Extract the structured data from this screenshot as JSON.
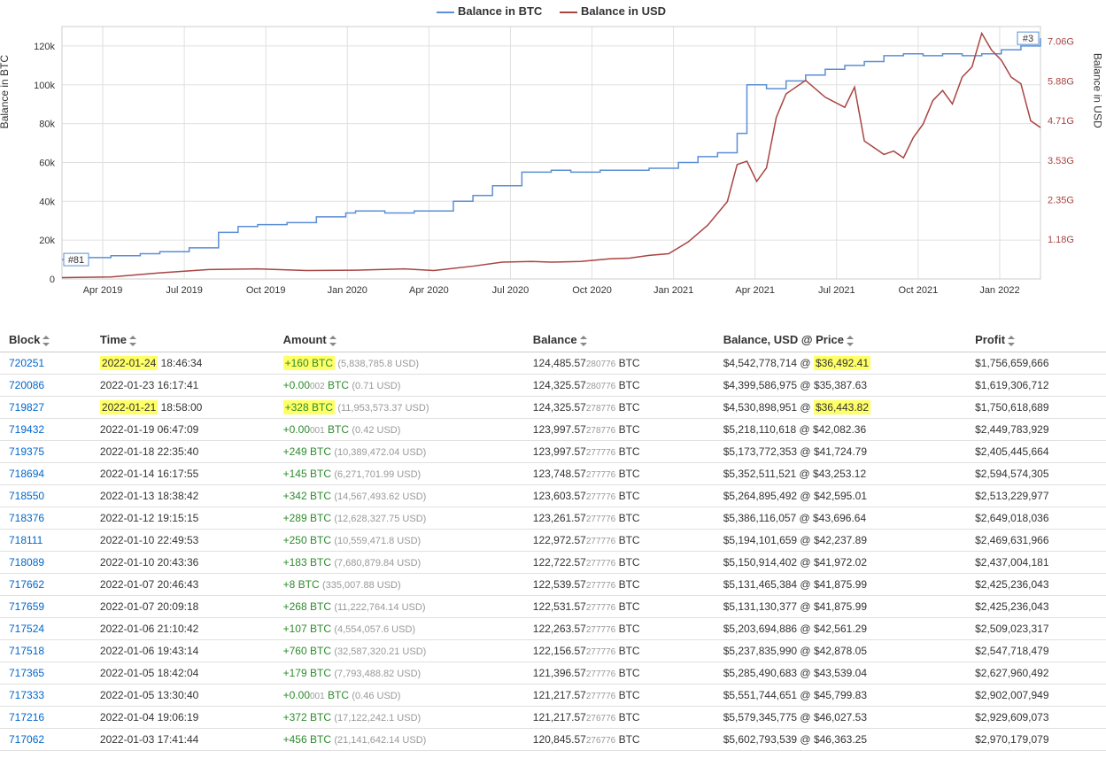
{
  "chart": {
    "type": "line-dual-axis",
    "legend": [
      {
        "label": "Balance in BTC",
        "color": "#5b8fd6"
      },
      {
        "label": "Balance in USD",
        "color": "#a94442"
      }
    ],
    "ylabel_left": "Balance in BTC",
    "ylabel_right": "Balance in USD",
    "x_ticks": [
      "Apr 2019",
      "Jul 2019",
      "Oct 2019",
      "Jan 2020",
      "Apr 2020",
      "Jul 2020",
      "Oct 2020",
      "Jan 2021",
      "Apr 2021",
      "Jul 2021",
      "Oct 2021",
      "Jan 2022"
    ],
    "y_left_ticks": [
      0,
      20,
      40,
      60,
      80,
      100,
      120
    ],
    "y_left_tick_labels": [
      "0",
      "20k",
      "40k",
      "60k",
      "80k",
      "100k",
      "120k"
    ],
    "y_left_lim": [
      0,
      130
    ],
    "y_right_ticks": [
      0,
      1.18,
      2.35,
      3.53,
      4.71,
      5.88,
      7.06
    ],
    "y_right_tick_labels": [
      "",
      "1.18G",
      "2.35G",
      "3.53G",
      "4.71G",
      "5.88G",
      "7.06G"
    ],
    "y_right_lim": [
      0,
      7.5
    ],
    "grid_color": "#e0e0e0",
    "background_color": "#ffffff",
    "btc_color": "#5b8fd6",
    "usd_color": "#a94442",
    "btc_series_x": [
      0,
      0.02,
      0.05,
      0.08,
      0.1,
      0.13,
      0.16,
      0.18,
      0.2,
      0.23,
      0.26,
      0.29,
      0.3,
      0.33,
      0.36,
      0.4,
      0.42,
      0.44,
      0.47,
      0.5,
      0.52,
      0.55,
      0.57,
      0.6,
      0.63,
      0.65,
      0.67,
      0.69,
      0.7,
      0.72,
      0.74,
      0.76,
      0.78,
      0.8,
      0.82,
      0.84,
      0.86,
      0.88,
      0.9,
      0.92,
      0.94,
      0.96,
      0.98,
      1.0
    ],
    "btc_series_y": [
      10,
      11,
      12,
      13,
      14,
      16,
      24,
      27,
      28,
      29,
      32,
      34,
      35,
      34,
      35,
      40,
      43,
      48,
      55,
      56,
      55,
      56,
      56,
      57,
      60,
      63,
      65,
      75,
      100,
      98,
      102,
      105,
      108,
      110,
      112,
      115,
      116,
      115,
      116,
      115,
      116,
      118,
      120,
      124
    ],
    "usd_series_x": [
      0,
      0.05,
      0.1,
      0.15,
      0.2,
      0.25,
      0.3,
      0.35,
      0.38,
      0.42,
      0.45,
      0.48,
      0.5,
      0.53,
      0.56,
      0.58,
      0.6,
      0.62,
      0.64,
      0.66,
      0.68,
      0.69,
      0.7,
      0.71,
      0.72,
      0.73,
      0.74,
      0.76,
      0.78,
      0.8,
      0.81,
      0.82,
      0.83,
      0.84,
      0.85,
      0.86,
      0.87,
      0.88,
      0.89,
      0.9,
      0.91,
      0.92,
      0.93,
      0.94,
      0.95,
      0.96,
      0.97,
      0.98,
      0.99,
      1.0
    ],
    "usd_series_y": [
      0.04,
      0.06,
      0.18,
      0.28,
      0.3,
      0.25,
      0.26,
      0.3,
      0.25,
      0.38,
      0.5,
      0.52,
      0.5,
      0.52,
      0.6,
      0.62,
      0.7,
      0.75,
      1.1,
      1.6,
      2.3,
      3.4,
      3.5,
      2.9,
      3.3,
      4.8,
      5.5,
      5.9,
      5.4,
      5.1,
      5.7,
      4.1,
      3.9,
      3.7,
      3.8,
      3.6,
      4.2,
      4.6,
      5.3,
      5.6,
      5.2,
      6.0,
      6.3,
      7.3,
      6.8,
      6.5,
      6.0,
      5.8,
      4.7,
      4.5
    ],
    "rank_start": "#81",
    "rank_end": "#3"
  },
  "table": {
    "headers": [
      "Block",
      "Time",
      "Amount",
      "Balance",
      "Balance, USD @ Price",
      "Profit"
    ],
    "sortable": [
      true,
      true,
      true,
      true,
      true,
      true
    ],
    "rows": [
      {
        "block": "720251",
        "time_hl": "2022-01-24",
        "time_rest": " 18:46:34",
        "amount_hl": "+160 BTC",
        "amount_usd": "(5,838,785.8 USD)",
        "balance_main": "124,485.57",
        "balance_frac": "280776",
        "balance_unit": " BTC",
        "usd_pre": "$4,542,778,714 @ ",
        "usd_hl": "$36,492.41",
        "profit": "$1,756,659,666",
        "hl": true
      },
      {
        "block": "720086",
        "time_hl": "",
        "time_rest": "2022-01-23 16:17:41",
        "amount_hl": "",
        "amount_main": "+0.00",
        "amount_frac": "002",
        "amount_btc": " BTC",
        "amount_usd": "(0.71 USD)",
        "balance_main": "124,325.57",
        "balance_frac": "280776",
        "balance_unit": " BTC",
        "usd_pre": "$4,399,586,975 @ $35,387.63",
        "usd_hl": "",
        "profit": "$1,619,306,712",
        "hl": false
      },
      {
        "block": "719827",
        "time_hl": "2022-01-21",
        "time_rest": " 18:58:00",
        "amount_hl": "+328 BTC",
        "amount_usd": "(11,953,573.37 USD)",
        "balance_main": "124,325.57",
        "balance_frac": "278776",
        "balance_unit": " BTC",
        "usd_pre": "$4,530,898,951 @ ",
        "usd_hl": "$36,443.82",
        "profit": "$1,750,618,689",
        "hl": true
      },
      {
        "block": "719432",
        "time_hl": "",
        "time_rest": "2022-01-19 06:47:09",
        "amount_hl": "",
        "amount_main": "+0.00",
        "amount_frac": "001",
        "amount_btc": " BTC",
        "amount_usd": "(0.42 USD)",
        "balance_main": "123,997.57",
        "balance_frac": "278776",
        "balance_unit": " BTC",
        "usd_pre": "$5,218,110,618 @ $42,082.36",
        "usd_hl": "",
        "profit": "$2,449,783,929",
        "hl": false
      },
      {
        "block": "719375",
        "time_hl": "",
        "time_rest": "2022-01-18 22:35:40",
        "amount_hl": "",
        "amount_main": "+249 BTC",
        "amount_frac": "",
        "amount_btc": "",
        "amount_usd": "(10,389,472.04 USD)",
        "balance_main": "123,997.57",
        "balance_frac": "277776",
        "balance_unit": " BTC",
        "usd_pre": "$5,173,772,353 @ $41,724.79",
        "usd_hl": "",
        "profit": "$2,405,445,664",
        "hl": false
      },
      {
        "block": "718694",
        "time_hl": "",
        "time_rest": "2022-01-14 16:17:55",
        "amount_hl": "",
        "amount_main": "+145 BTC",
        "amount_frac": "",
        "amount_btc": "",
        "amount_usd": "(6,271,701.99 USD)",
        "balance_main": "123,748.57",
        "balance_frac": "277776",
        "balance_unit": " BTC",
        "usd_pre": "$5,352,511,521 @ $43,253.12",
        "usd_hl": "",
        "profit": "$2,594,574,305",
        "hl": false
      },
      {
        "block": "718550",
        "time_hl": "",
        "time_rest": "2022-01-13 18:38:42",
        "amount_hl": "",
        "amount_main": "+342 BTC",
        "amount_frac": "",
        "amount_btc": "",
        "amount_usd": "(14,567,493.62 USD)",
        "balance_main": "123,603.57",
        "balance_frac": "277776",
        "balance_unit": " BTC",
        "usd_pre": "$5,264,895,492 @ $42,595.01",
        "usd_hl": "",
        "profit": "$2,513,229,977",
        "hl": false
      },
      {
        "block": "718376",
        "time_hl": "",
        "time_rest": "2022-01-12 19:15:15",
        "amount_hl": "",
        "amount_main": "+289 BTC",
        "amount_frac": "",
        "amount_btc": "",
        "amount_usd": "(12,628,327.75 USD)",
        "balance_main": "123,261.57",
        "balance_frac": "277776",
        "balance_unit": " BTC",
        "usd_pre": "$5,386,116,057 @ $43,696.64",
        "usd_hl": "",
        "profit": "$2,649,018,036",
        "hl": false
      },
      {
        "block": "718111",
        "time_hl": "",
        "time_rest": "2022-01-10 22:49:53",
        "amount_hl": "",
        "amount_main": "+250 BTC",
        "amount_frac": "",
        "amount_btc": "",
        "amount_usd": "(10,559,471.8 USD)",
        "balance_main": "122,972.57",
        "balance_frac": "277776",
        "balance_unit": " BTC",
        "usd_pre": "$5,194,101,659 @ $42,237.89",
        "usd_hl": "",
        "profit": "$2,469,631,966",
        "hl": false
      },
      {
        "block": "718089",
        "time_hl": "",
        "time_rest": "2022-01-10 20:43:36",
        "amount_hl": "",
        "amount_main": "+183 BTC",
        "amount_frac": "",
        "amount_btc": "",
        "amount_usd": "(7,680,879.84 USD)",
        "balance_main": "122,722.57",
        "balance_frac": "277776",
        "balance_unit": " BTC",
        "usd_pre": "$5,150,914,402 @ $41,972.02",
        "usd_hl": "",
        "profit": "$2,437,004,181",
        "hl": false
      },
      {
        "block": "717662",
        "time_hl": "",
        "time_rest": "2022-01-07 20:46:43",
        "amount_hl": "",
        "amount_main": "+8 BTC",
        "amount_frac": "",
        "amount_btc": "",
        "amount_usd": "(335,007.88 USD)",
        "balance_main": "122,539.57",
        "balance_frac": "277776",
        "balance_unit": " BTC",
        "usd_pre": "$5,131,465,384 @ $41,875.99",
        "usd_hl": "",
        "profit": "$2,425,236,043",
        "hl": false
      },
      {
        "block": "717659",
        "time_hl": "",
        "time_rest": "2022-01-07 20:09:18",
        "amount_hl": "",
        "amount_main": "+268 BTC",
        "amount_frac": "",
        "amount_btc": "",
        "amount_usd": "(11,222,764.14 USD)",
        "balance_main": "122,531.57",
        "balance_frac": "277776",
        "balance_unit": " BTC",
        "usd_pre": "$5,131,130,377 @ $41,875.99",
        "usd_hl": "",
        "profit": "$2,425,236,043",
        "hl": false
      },
      {
        "block": "717524",
        "time_hl": "",
        "time_rest": "2022-01-06 21:10:42",
        "amount_hl": "",
        "amount_main": "+107 BTC",
        "amount_frac": "",
        "amount_btc": "",
        "amount_usd": "(4,554,057.6 USD)",
        "balance_main": "122,263.57",
        "balance_frac": "277776",
        "balance_unit": " BTC",
        "usd_pre": "$5,203,694,886 @ $42,561.29",
        "usd_hl": "",
        "profit": "$2,509,023,317",
        "hl": false
      },
      {
        "block": "717518",
        "time_hl": "",
        "time_rest": "2022-01-06 19:43:14",
        "amount_hl": "",
        "amount_main": "+760 BTC",
        "amount_frac": "",
        "amount_btc": "",
        "amount_usd": "(32,587,320.21 USD)",
        "balance_main": "122,156.57",
        "balance_frac": "277776",
        "balance_unit": " BTC",
        "usd_pre": "$5,237,835,990 @ $42,878.05",
        "usd_hl": "",
        "profit": "$2,547,718,479",
        "hl": false
      },
      {
        "block": "717365",
        "time_hl": "",
        "time_rest": "2022-01-05 18:42:04",
        "amount_hl": "",
        "amount_main": "+179 BTC",
        "amount_frac": "",
        "amount_btc": "",
        "amount_usd": "(7,793,488.82 USD)",
        "balance_main": "121,396.57",
        "balance_frac": "277776",
        "balance_unit": " BTC",
        "usd_pre": "$5,285,490,683 @ $43,539.04",
        "usd_hl": "",
        "profit": "$2,627,960,492",
        "hl": false
      },
      {
        "block": "717333",
        "time_hl": "",
        "time_rest": "2022-01-05 13:30:40",
        "amount_hl": "",
        "amount_main": "+0.00",
        "amount_frac": "001",
        "amount_btc": " BTC",
        "amount_usd": "(0.46 USD)",
        "balance_main": "121,217.57",
        "balance_frac": "277776",
        "balance_unit": " BTC",
        "usd_pre": "$5,551,744,651 @ $45,799.83",
        "usd_hl": "",
        "profit": "$2,902,007,949",
        "hl": false
      },
      {
        "block": "717216",
        "time_hl": "",
        "time_rest": "2022-01-04 19:06:19",
        "amount_hl": "",
        "amount_main": "+372 BTC",
        "amount_frac": "",
        "amount_btc": "",
        "amount_usd": "(17,122,242.1 USD)",
        "balance_main": "121,217.57",
        "balance_frac": "276776",
        "balance_unit": " BTC",
        "usd_pre": "$5,579,345,775 @ $46,027.53",
        "usd_hl": "",
        "profit": "$2,929,609,073",
        "hl": false
      },
      {
        "block": "717062",
        "time_hl": "",
        "time_rest": "2022-01-03 17:41:44",
        "amount_hl": "",
        "amount_main": "+456 BTC",
        "amount_frac": "",
        "amount_btc": "",
        "amount_usd": "(21,141,642.14 USD)",
        "balance_main": "120,845.57",
        "balance_frac": "276776",
        "balance_unit": " BTC",
        "usd_pre": "$5,602,793,539 @ $46,363.25",
        "usd_hl": "",
        "profit": "$2,970,179,079",
        "hl": false
      }
    ]
  }
}
